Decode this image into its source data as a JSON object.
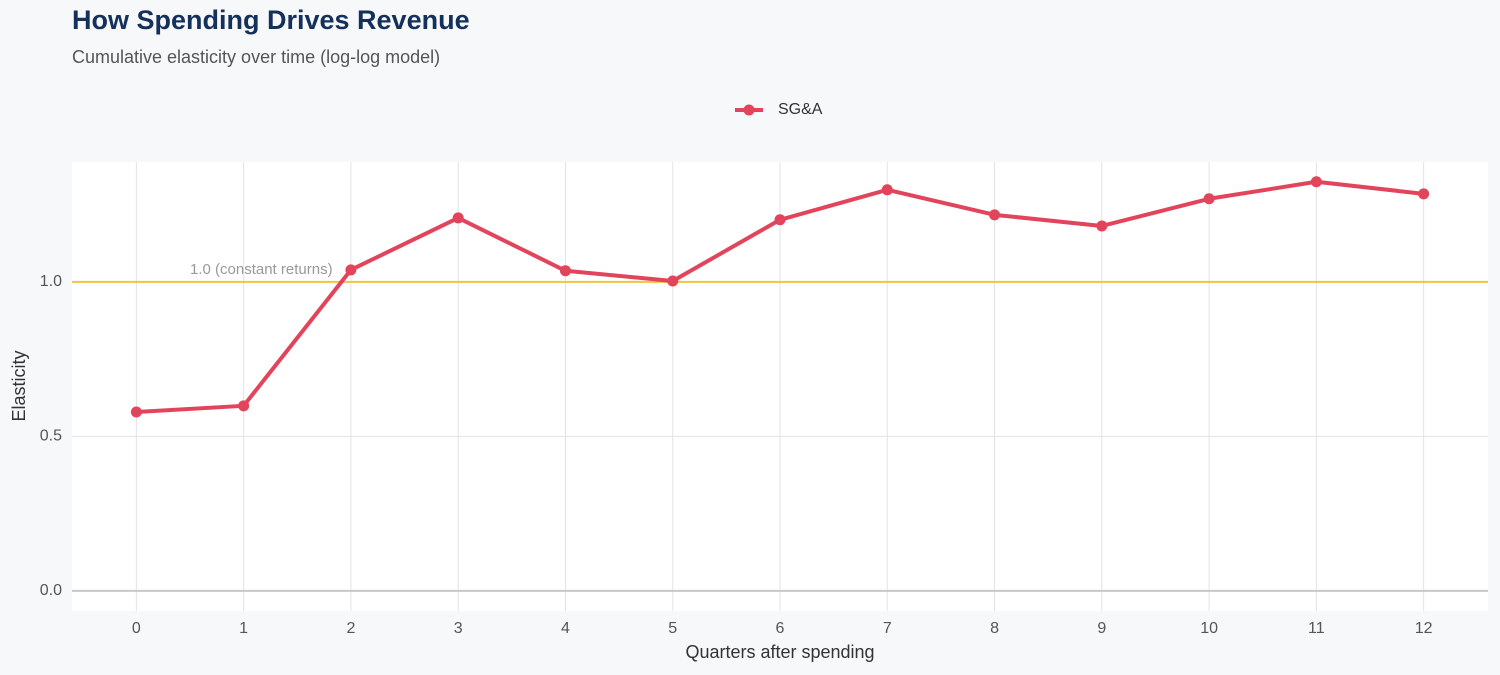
{
  "chart_data": {
    "type": "line",
    "title": "How Spending Drives Revenue",
    "subtitle": "Cumulative elasticity over time (log-log model)",
    "x_label": "Quarters after spending",
    "y_label": "Elasticity",
    "x": [
      0,
      1,
      2,
      3,
      4,
      5,
      6,
      7,
      8,
      9,
      10,
      11,
      12
    ],
    "series": [
      {
        "name": "SG&A",
        "color": "#e2445c",
        "values": [
          0.579,
          0.599,
          1.039,
          1.207,
          1.036,
          1.003,
          1.201,
          1.298,
          1.217,
          1.181,
          1.269,
          1.324,
          1.285
        ]
      }
    ],
    "xlim": [
      -0.6,
      12.6
    ],
    "ylim": [
      -0.065,
      1.388
    ],
    "xticks": [
      0,
      1,
      2,
      3,
      4,
      5,
      6,
      7,
      8,
      9,
      10,
      11,
      12
    ],
    "yticks": [
      {
        "value": 0,
        "label": "0.0"
      },
      0.5,
      {
        "value": 1,
        "label": "1.0"
      }
    ],
    "reference_line": {
      "value": 1,
      "label": "1.0 (constant returns)",
      "color": "#f5c242"
    },
    "grid": true,
    "legend": "top"
  }
}
